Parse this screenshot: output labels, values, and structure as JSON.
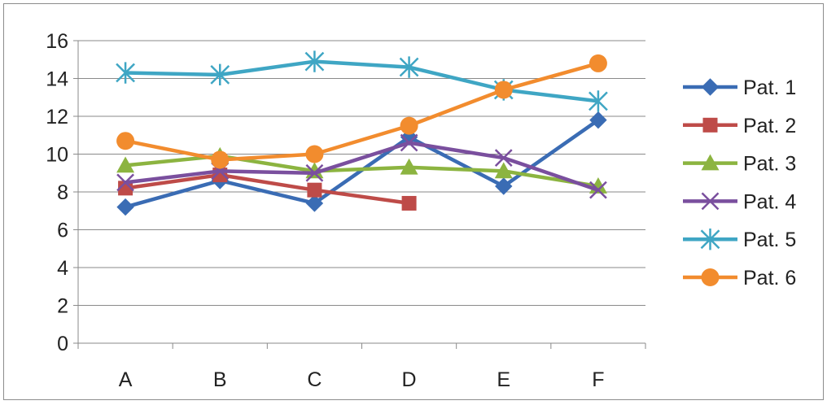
{
  "chart_data": {
    "type": "line",
    "categories": [
      "A",
      "B",
      "C",
      "D",
      "E",
      "F"
    ],
    "ylim": [
      0,
      16
    ],
    "yticks": [
      0,
      2,
      4,
      6,
      8,
      10,
      12,
      14,
      16
    ],
    "grid": "horizontal",
    "legend": "right",
    "series": [
      {
        "name": "Pat. 1",
        "color": "#3a6cb4",
        "marker": "diamond",
        "values": [
          7.2,
          8.6,
          7.4,
          10.9,
          8.3,
          11.8
        ]
      },
      {
        "name": "Pat. 2",
        "color": "#be4b48",
        "marker": "square",
        "values": [
          8.2,
          8.9,
          8.1,
          7.4,
          null,
          null
        ]
      },
      {
        "name": "Pat. 3",
        "color": "#8cb440",
        "marker": "triangle",
        "values": [
          9.4,
          9.9,
          9.1,
          9.3,
          9.1,
          8.3
        ]
      },
      {
        "name": "Pat. 4",
        "color": "#7a4f9e",
        "marker": "x",
        "values": [
          8.5,
          9.1,
          9.0,
          10.6,
          9.8,
          8.1
        ]
      },
      {
        "name": "Pat. 5",
        "color": "#3fa6c4",
        "marker": "star",
        "values": [
          14.3,
          14.2,
          14.9,
          14.6,
          13.4,
          12.8
        ]
      },
      {
        "name": "Pat. 6",
        "color": "#f28c2e",
        "marker": "circle",
        "values": [
          10.7,
          9.7,
          10.0,
          11.5,
          13.4,
          14.8
        ]
      }
    ]
  }
}
